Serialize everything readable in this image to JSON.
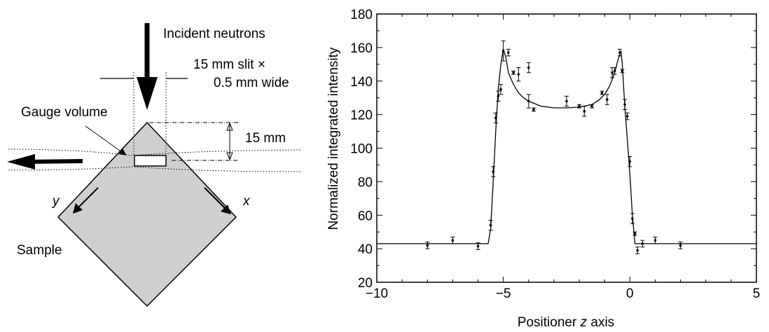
{
  "diagram": {
    "incident_label": "Incident neutrons",
    "slit_line1": "15 mm slit ×",
    "slit_line2": "0.5 mm wide",
    "gauge_label": "Gauge volume",
    "depth_label": "15 mm",
    "y_axis_label": "y",
    "x_axis_label": "x",
    "sample_label": "Sample"
  },
  "chart_data": {
    "type": "scatter",
    "xlabel_prefix": "Positioner ",
    "xlabel_var": "z",
    "xlabel_suffix": " axis",
    "ylabel": "Normalized integrated intensity",
    "xlim": [
      -10,
      5
    ],
    "ylim": [
      20,
      180
    ],
    "xticks": [
      -10,
      -5,
      0,
      5
    ],
    "yticks": [
      20,
      40,
      60,
      80,
      100,
      120,
      140,
      160,
      180
    ],
    "grid": false,
    "points": [
      {
        "x": -8.0,
        "y": 42,
        "err": 2
      },
      {
        "x": -7.0,
        "y": 45,
        "err": 2
      },
      {
        "x": -6.0,
        "y": 41.5,
        "err": 2
      },
      {
        "x": -5.5,
        "y": 54,
        "err": 3
      },
      {
        "x": -5.4,
        "y": 86,
        "err": 3
      },
      {
        "x": -5.3,
        "y": 118,
        "err": 3
      },
      {
        "x": -5.2,
        "y": 131,
        "err": 3
      },
      {
        "x": -5.1,
        "y": 135,
        "err": 3
      },
      {
        "x": -5.0,
        "y": 158,
        "err": 6
      },
      {
        "x": -4.8,
        "y": 157,
        "err": 2
      },
      {
        "x": -4.6,
        "y": 145,
        "err": 1
      },
      {
        "x": -4.4,
        "y": 144,
        "err": 4
      },
      {
        "x": -4.0,
        "y": 148,
        "err": 3
      },
      {
        "x": -4.0,
        "y": 128,
        "err": 4
      },
      {
        "x": -3.8,
        "y": 123,
        "err": 1
      },
      {
        "x": -2.5,
        "y": 128,
        "err": 3
      },
      {
        "x": -2.0,
        "y": 125,
        "err": 1
      },
      {
        "x": -1.8,
        "y": 122,
        "err": 3
      },
      {
        "x": -1.5,
        "y": 125,
        "err": 1
      },
      {
        "x": -1.1,
        "y": 133,
        "err": 1
      },
      {
        "x": -0.9,
        "y": 129,
        "err": 3
      },
      {
        "x": -0.7,
        "y": 145,
        "err": 3
      },
      {
        "x": -0.6,
        "y": 146,
        "err": 2
      },
      {
        "x": -0.4,
        "y": 157,
        "err": 2
      },
      {
        "x": -0.3,
        "y": 146,
        "err": 1
      },
      {
        "x": -0.2,
        "y": 126,
        "err": 3
      },
      {
        "x": -0.1,
        "y": 119,
        "err": 2
      },
      {
        "x": 0.0,
        "y": 92,
        "err": 3
      },
      {
        "x": 0.1,
        "y": 58,
        "err": 3
      },
      {
        "x": 0.2,
        "y": 49,
        "err": 1
      },
      {
        "x": 0.3,
        "y": 39,
        "err": 2
      },
      {
        "x": 0.5,
        "y": 43,
        "err": 2
      },
      {
        "x": 1.0,
        "y": 45,
        "err": 2
      },
      {
        "x": 2.0,
        "y": 42,
        "err": 2
      }
    ],
    "fit_curve": {
      "x": [
        -10,
        -5.6,
        -5.5,
        -5.4,
        -5.3,
        -5.2,
        -5.1,
        -5.0,
        -4.9,
        -4.8,
        -4.6,
        -4.4,
        -4.2,
        -4.0,
        -3.5,
        -3.0,
        -2.5,
        -2.0,
        -1.5,
        -1.2,
        -1.0,
        -0.8,
        -0.6,
        -0.5,
        -0.4,
        -0.35,
        -0.3,
        -0.2,
        -0.1,
        0.0,
        0.1,
        0.2,
        5
      ],
      "y": [
        43,
        43,
        52,
        80,
        110,
        135,
        150,
        159,
        154,
        145,
        138,
        133,
        130,
        128,
        125,
        124,
        124,
        124.5,
        126,
        129,
        132,
        137,
        145,
        151,
        156,
        158,
        150,
        125,
        105,
        85,
        60,
        43,
        43
      ]
    }
  }
}
